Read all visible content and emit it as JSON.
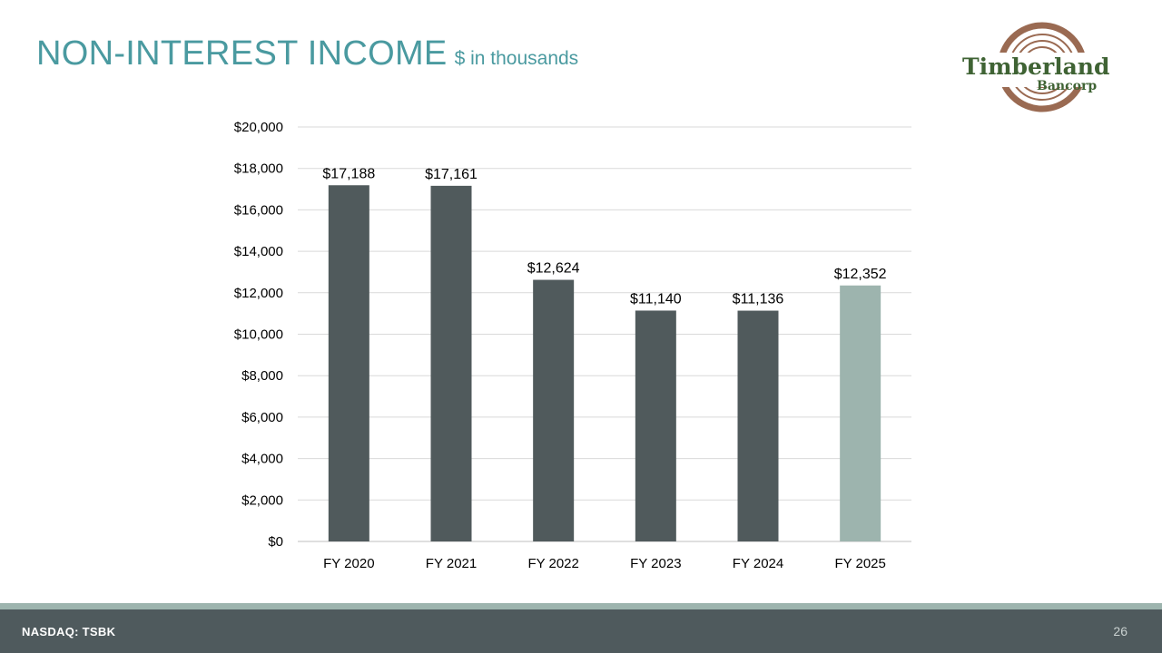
{
  "header": {
    "title": "NON-INTEREST INCOME",
    "subtitle": "$ in thousands"
  },
  "logo": {
    "line1": "Timberland",
    "line2": "Bancorp",
    "colors": {
      "text": "#3f6334",
      "ring": "#9a6a52"
    }
  },
  "chart_data": {
    "type": "bar",
    "categories": [
      "FY 2020",
      "FY 2021",
      "FY 2022",
      "FY 2023",
      "FY 2024",
      "FY 2025"
    ],
    "values": [
      17188,
      17161,
      12624,
      11140,
      11136,
      12352
    ],
    "data_labels": [
      "$17,188",
      "$17,161",
      "$12,624",
      "$11,140",
      "$11,136",
      "$12,352"
    ],
    "ylim": [
      0,
      20000
    ],
    "yticks": [
      0,
      2000,
      4000,
      6000,
      8000,
      10000,
      12000,
      14000,
      16000,
      18000,
      20000
    ],
    "ytick_labels": [
      "$0",
      "$2,000",
      "$4,000",
      "$6,000",
      "$8,000",
      "$10,000",
      "$12,000",
      "$14,000",
      "$16,000",
      "$18,000",
      "$20,000"
    ],
    "grid": true,
    "colors": [
      "#505a5c",
      "#505a5c",
      "#505a5c",
      "#505a5c",
      "#505a5c",
      "#9db4ae"
    ]
  },
  "footer": {
    "ticker": "NASDAQ: TSBK",
    "page_number": "26"
  }
}
